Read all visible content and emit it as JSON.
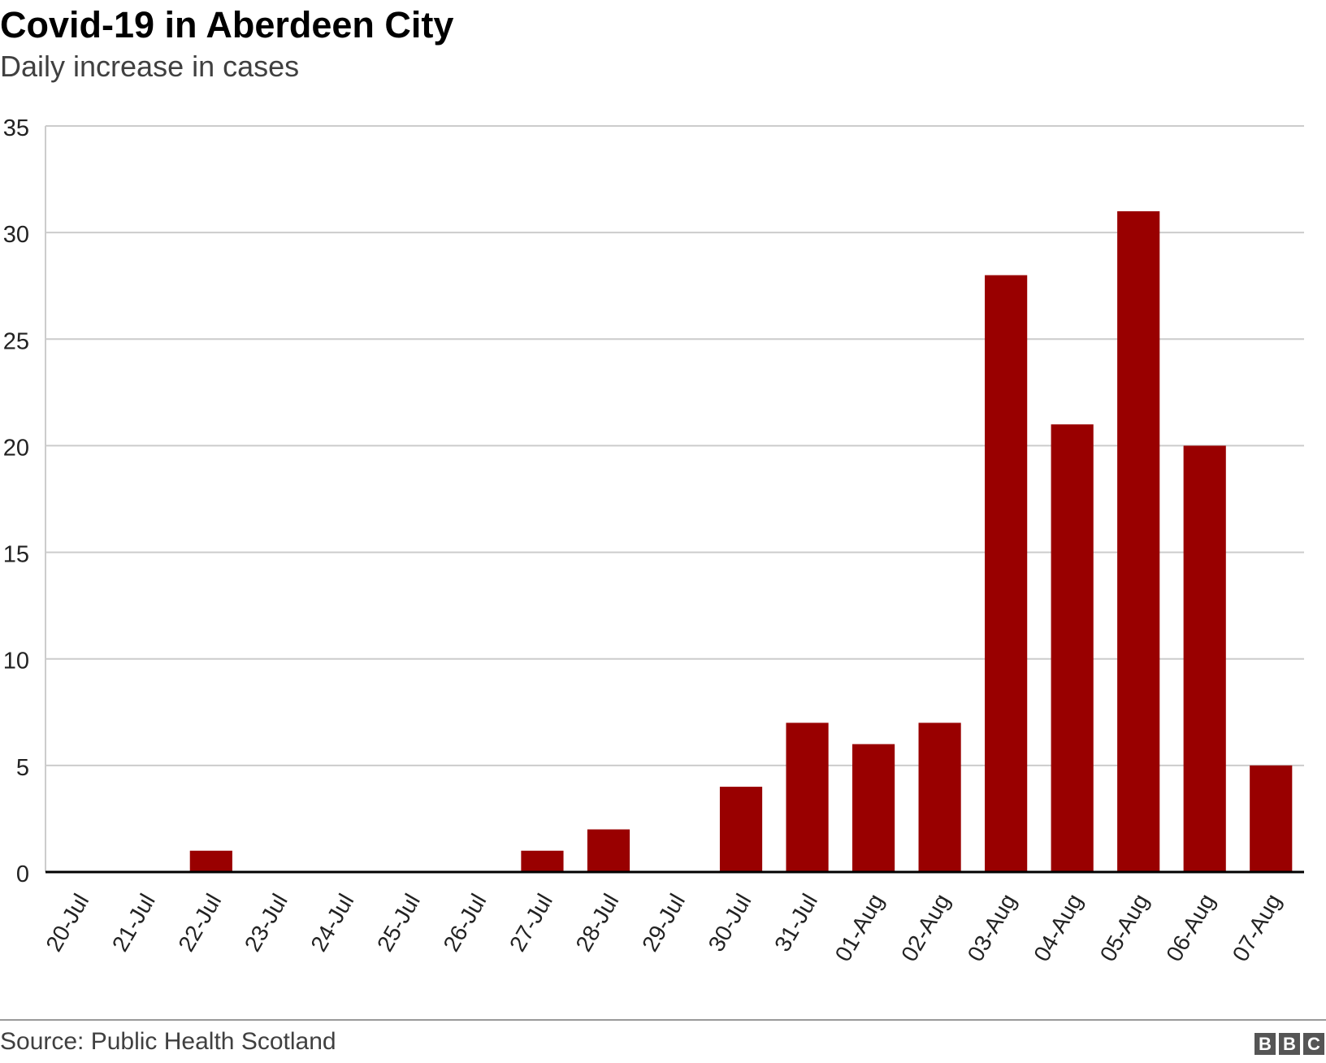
{
  "header": {
    "title": "Covid-19 in Aberdeen City",
    "subtitle": "Daily increase in cases"
  },
  "footer": {
    "source": "Source: Public Health Scotland",
    "logo_letters": [
      "B",
      "B",
      "C"
    ]
  },
  "colors": {
    "bar": "#990000",
    "grid": "#cccccc",
    "axis": "#000000"
  },
  "chart_data": {
    "type": "bar",
    "title": "Covid-19 in Aberdeen City",
    "subtitle": "Daily increase in cases",
    "xlabel": "",
    "ylabel": "",
    "categories": [
      "20-Jul",
      "21-Jul",
      "22-Jul",
      "23-Jul",
      "24-Jul",
      "25-Jul",
      "26-Jul",
      "27-Jul",
      "28-Jul",
      "29-Jul",
      "30-Jul",
      "31-Jul",
      "01-Aug",
      "02-Aug",
      "03-Aug",
      "04-Aug",
      "05-Aug",
      "06-Aug",
      "07-Aug"
    ],
    "values": [
      0,
      0,
      1,
      0,
      0,
      0,
      0,
      1,
      2,
      0,
      4,
      7,
      6,
      7,
      28,
      21,
      31,
      20,
      5
    ],
    "ylim": [
      0,
      35
    ],
    "yticks": [
      0,
      5,
      10,
      15,
      20,
      25,
      30,
      35
    ],
    "grid": true,
    "legend": false
  }
}
